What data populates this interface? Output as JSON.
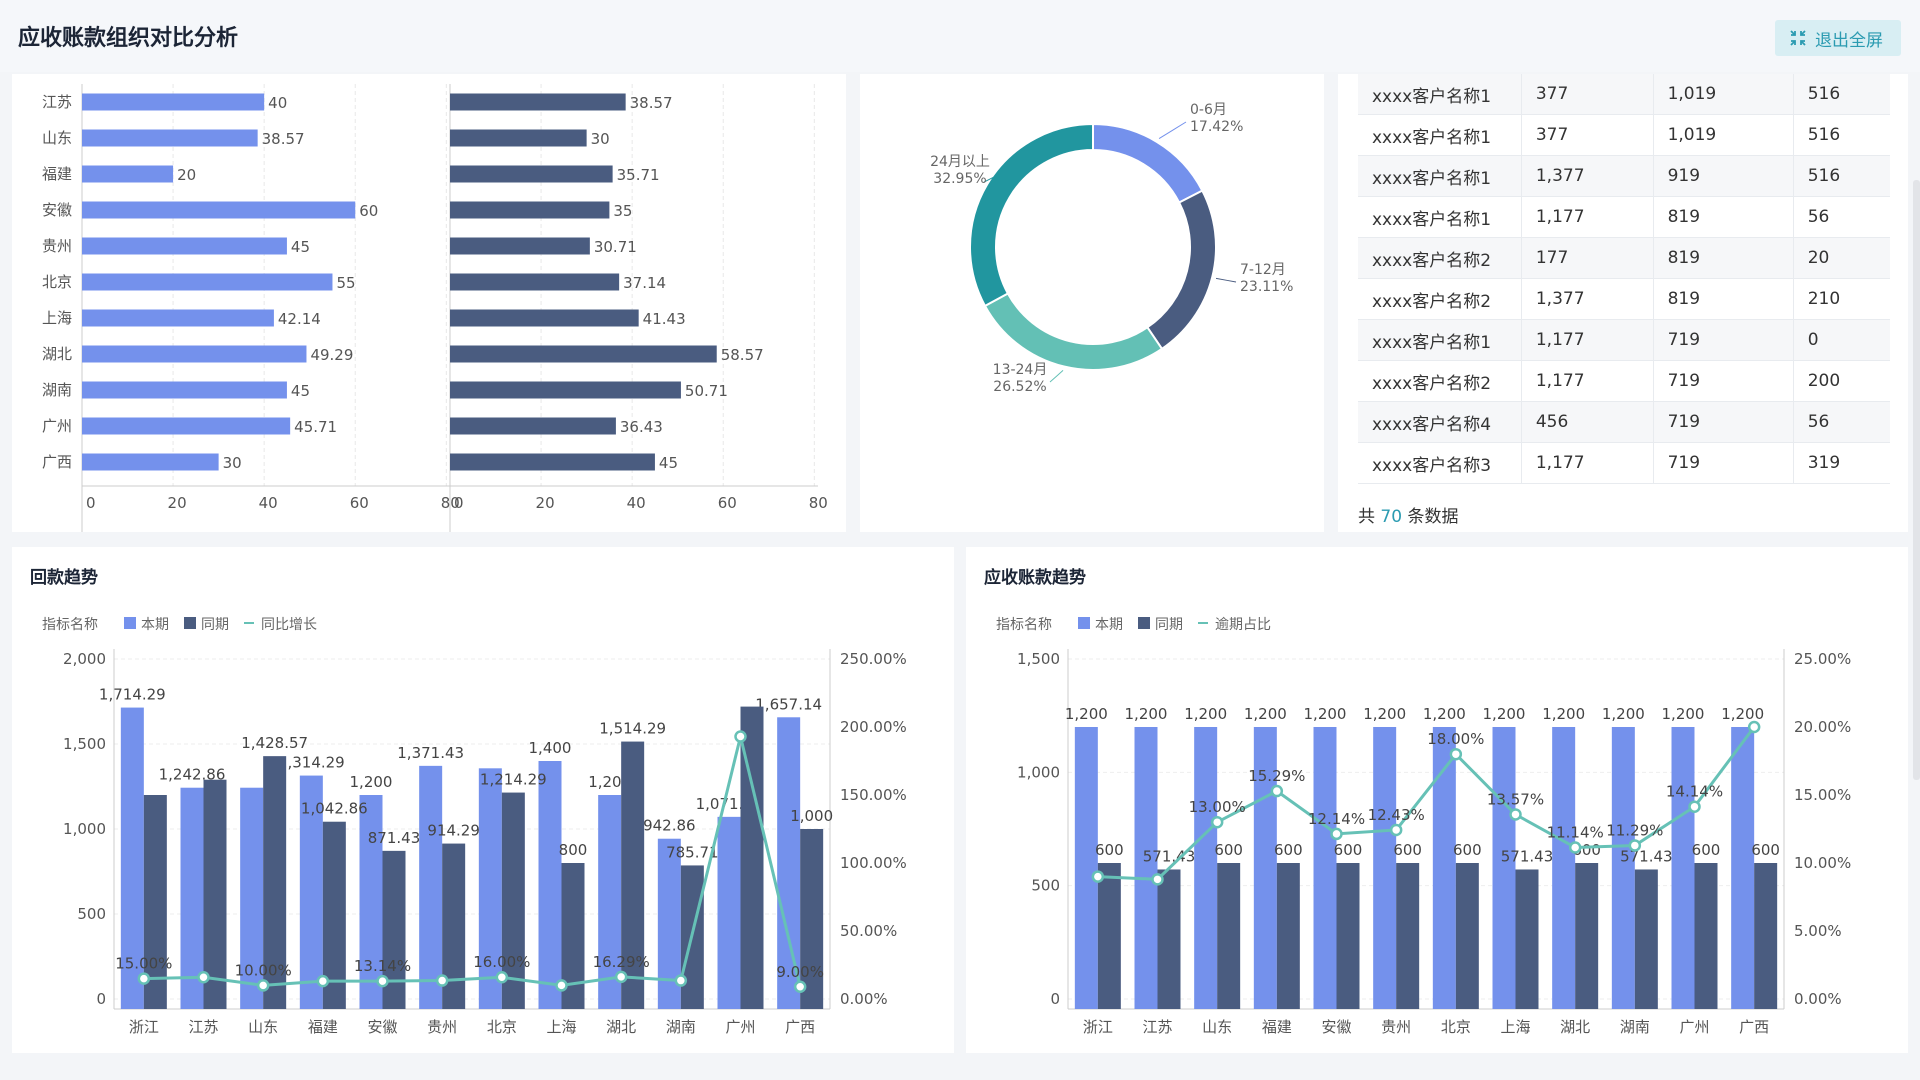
{
  "page": {
    "title": "应收账款组织对比分析",
    "exit_label": "退出全屏"
  },
  "colors": {
    "primary": "#7491ec",
    "secondary": "#4a5c80",
    "line": "#66c1b6",
    "teal_dark": "#21969f",
    "teal_light": "#63c0b5"
  },
  "provinces": [
    "江苏",
    "山东",
    "福建",
    "安徽",
    "贵州",
    "北京",
    "上海",
    "湖北",
    "湖南",
    "广州",
    "广西"
  ],
  "bar_left": {
    "values": [
      40,
      38.57,
      20,
      60,
      45,
      55,
      42.14,
      49.29,
      45,
      45.71,
      30
    ],
    "labels": [
      "40",
      "38.57",
      "20",
      "60",
      "45",
      "55",
      "42.14",
      "49.29",
      "45",
      "45.71",
      "30"
    ],
    "ticks": [
      "0",
      "20",
      "40",
      "60",
      "80"
    ],
    "max": 80
  },
  "bar_right": {
    "values": [
      38.57,
      30,
      35.71,
      35,
      30.71,
      37.14,
      41.43,
      58.57,
      50.71,
      36.43,
      45
    ],
    "labels": [
      "38.57",
      "30",
      "35.71",
      "35",
      "30.71",
      "37.14",
      "41.43",
      "58.57",
      "50.71",
      "36.43",
      "45"
    ],
    "ticks": [
      "0",
      "20",
      "40",
      "60",
      "80"
    ],
    "max": 80
  },
  "donut": {
    "slices": [
      {
        "name": "0-6月",
        "pct": 17.42,
        "label": "17.42%",
        "color": "#7491ec"
      },
      {
        "name": "7-12月",
        "pct": 23.11,
        "label": "23.11%",
        "color": "#4a5c80"
      },
      {
        "name": "13-24月",
        "pct": 26.52,
        "label": "26.52%",
        "color": "#63c0b5"
      },
      {
        "name": "24月以上",
        "pct": 32.95,
        "label": "32.95%",
        "color": "#21969f"
      }
    ]
  },
  "table": {
    "rows": [
      [
        "xxxx客户名称1",
        "377",
        "1,019",
        "516"
      ],
      [
        "xxxx客户名称1",
        "377",
        "1,019",
        "516"
      ],
      [
        "xxxx客户名称1",
        "1,377",
        "919",
        "516"
      ],
      [
        "xxxx客户名称1",
        "1,177",
        "819",
        "56"
      ],
      [
        "xxxx客户名称2",
        "177",
        "819",
        "20"
      ],
      [
        "xxxx客户名称2",
        "1,377",
        "819",
        "210"
      ],
      [
        "xxxx客户名称1",
        "1,177",
        "719",
        "0"
      ],
      [
        "xxxx客户名称2",
        "1,177",
        "719",
        "200"
      ],
      [
        "xxxx客户名称4",
        "456",
        "719",
        "56"
      ],
      [
        "xxxx客户名称3",
        "1,177",
        "719",
        "319"
      ]
    ],
    "total_prefix": "共",
    "total_count": "70",
    "total_suffix": "条数据"
  },
  "chart_data": [
    {
      "type": "bar",
      "title": "回款趋势",
      "legend_title": "指标名称",
      "categories": [
        "浙江",
        "江苏",
        "山东",
        "福建",
        "安徽",
        "贵州",
        "北京",
        "上海",
        "湖北",
        "湖南",
        "广州",
        "广西"
      ],
      "series": [
        {
          "name": "本期",
          "type": "bar",
          "values": [
            1714.29,
            1242.86,
            1242.86,
            1314.29,
            1200,
            1371.43,
            1357,
            1400,
            1200,
            942.86,
            1071.43,
            1657.14
          ],
          "labels": [
            "1,714.29",
            "1,242.86",
            "",
            "1,314.29",
            "1,200",
            "1,371.43",
            "",
            "1,400",
            "1,200",
            "942.86",
            "1,071.43",
            "1,657.14"
          ]
        },
        {
          "name": "同期",
          "type": "bar",
          "values": [
            1200,
            1290,
            1428.57,
            1042.86,
            871.43,
            914.29,
            1214.29,
            800,
            1514.29,
            785.71,
            1720,
            1000
          ],
          "labels": [
            "",
            "",
            "1,428.57",
            "1,042.86",
            "871.43",
            "914.29",
            "1,214.29",
            "800",
            "1,514.29",
            "785.71",
            "",
            "1,000"
          ]
        },
        {
          "name": "同比增长",
          "type": "line",
          "values": [
            15.0,
            16.0,
            10.0,
            13.14,
            13.14,
            13.57,
            16.0,
            10.0,
            16.29,
            13.57,
            193.0,
            9.0
          ],
          "labels": [
            "15.00%",
            "",
            "10.00%",
            "",
            "13.14%",
            "",
            "16.00%",
            "",
            "16.29%",
            "",
            "",
            "9.00%"
          ]
        }
      ],
      "y_left": {
        "ticks": [
          "0",
          "500",
          "1,000",
          "1,500",
          "2,000"
        ],
        "max": 2000
      },
      "y_right": {
        "ticks": [
          "0.00%",
          "50.00%",
          "100.00%",
          "150.00%",
          "200.00%",
          "250.00%"
        ],
        "max": 250
      }
    },
    {
      "type": "bar",
      "title": "应收账款趋势",
      "legend_title": "指标名称",
      "categories": [
        "浙江",
        "江苏",
        "山东",
        "福建",
        "安徽",
        "贵州",
        "北京",
        "上海",
        "湖北",
        "湖南",
        "广州",
        "广西"
      ],
      "series": [
        {
          "name": "本期",
          "type": "bar",
          "values": [
            1200,
            1200,
            1200,
            1200,
            1200,
            1200,
            1200,
            1200,
            1200,
            1200,
            1200,
            1200
          ],
          "labels": [
            "1,200",
            "1,200",
            "1,200",
            "1,200",
            "1,200",
            "1,200",
            "1,200",
            "1,200",
            "1,200",
            "1,200",
            "1,200",
            "1,200"
          ]
        },
        {
          "name": "同期",
          "type": "bar",
          "values": [
            600,
            571.43,
            600,
            600,
            600,
            600,
            600,
            571.43,
            600,
            571.43,
            600,
            600
          ],
          "labels": [
            "600",
            "571.43",
            "600",
            "600",
            "600",
            "600",
            "600",
            "571.43",
            "600",
            "571.43",
            "600",
            "600"
          ]
        },
        {
          "name": "逾期占比",
          "type": "line",
          "values": [
            9.0,
            8.8,
            13.0,
            15.29,
            12.14,
            12.43,
            18.0,
            13.57,
            11.14,
            11.29,
            14.14,
            20.0
          ],
          "labels": [
            "",
            "",
            "13.00%",
            "15.29%",
            "12.14%",
            "12.43%",
            "18.00%",
            "13.57%",
            "11.14%",
            "11.29%",
            "14.14%",
            ""
          ]
        }
      ],
      "y_left": {
        "ticks": [
          "0",
          "500",
          "1,000",
          "1,500"
        ],
        "max": 1500
      },
      "y_right": {
        "ticks": [
          "0.00%",
          "5.00%",
          "10.00%",
          "15.00%",
          "20.00%",
          "25.00%"
        ],
        "max": 25
      }
    }
  ]
}
